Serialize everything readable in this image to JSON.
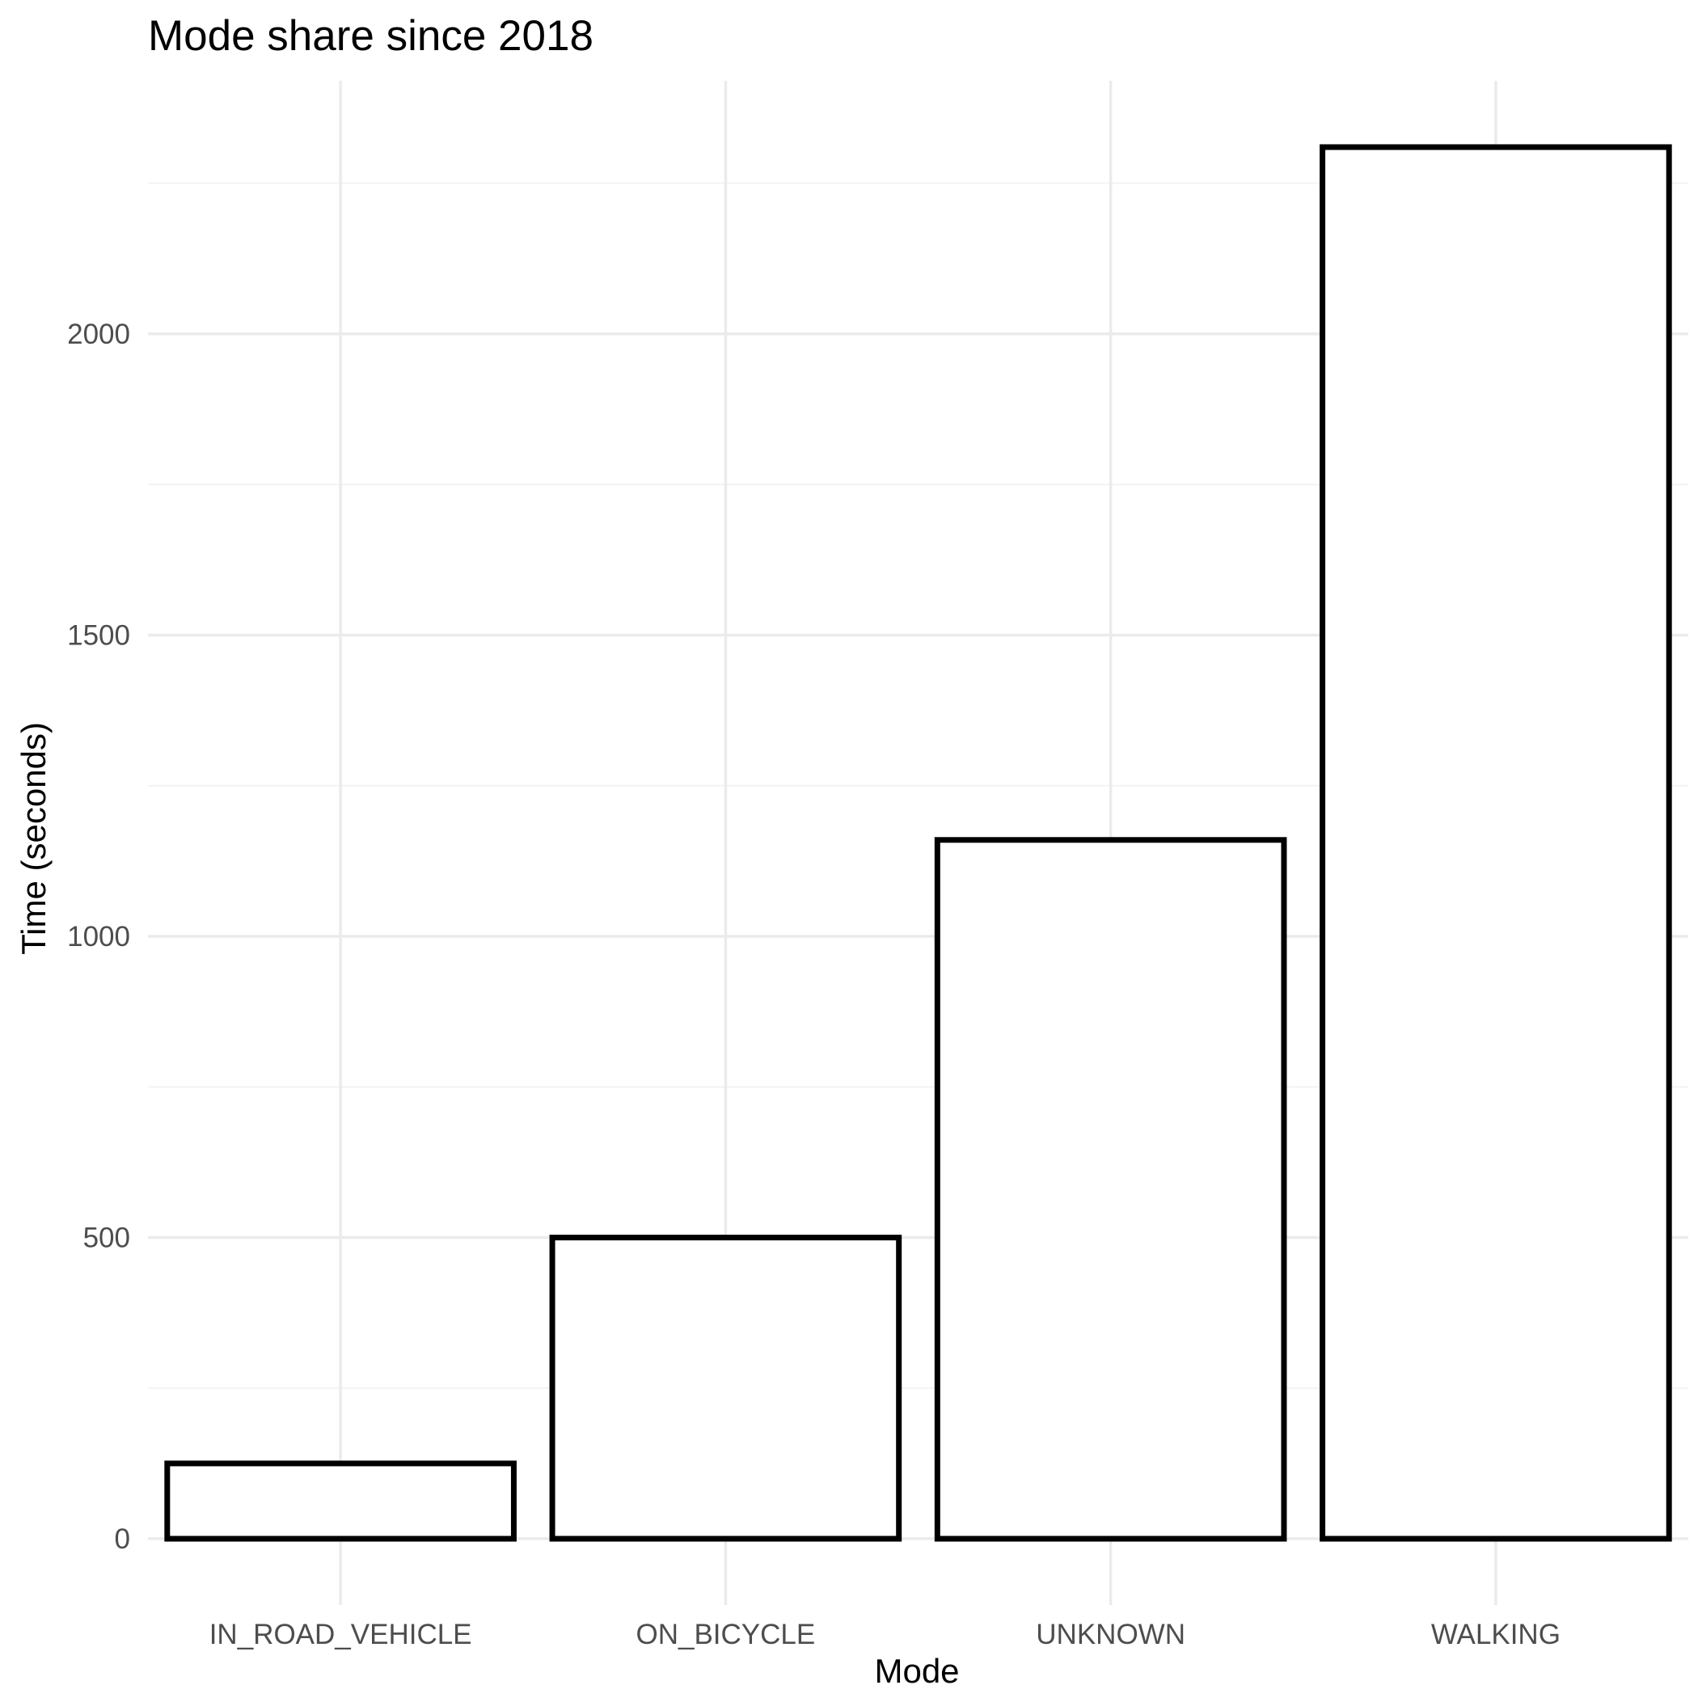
{
  "chart_data": {
    "type": "bar",
    "title": "Mode share since 2018",
    "xlabel": "Mode",
    "ylabel": "Time (seconds)",
    "categories": [
      "IN_ROAD_VEHICLE",
      "ON_BICYCLE",
      "UNKNOWN",
      "WALKING"
    ],
    "values": [
      125,
      500,
      1160,
      2310
    ],
    "ylim": [
      -110,
      2420
    ],
    "yticks": [
      0,
      500,
      1000,
      1500,
      2000
    ],
    "grid": true,
    "legend": "none",
    "colors": {
      "bar_fill": "#ffffff",
      "bar_stroke": "#000000",
      "grid_major": "#ebebeb",
      "grid_minor": "#f3f3f3"
    }
  }
}
